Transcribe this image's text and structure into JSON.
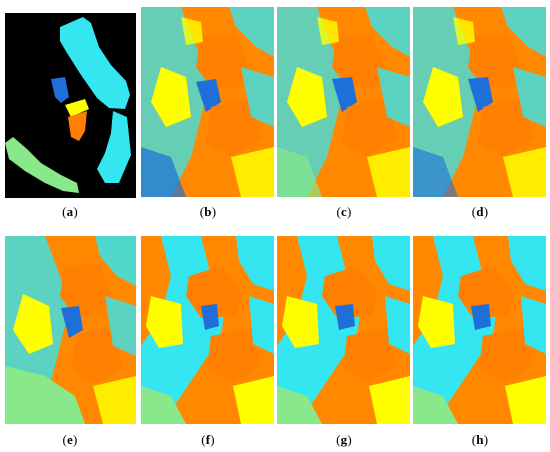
{
  "panels": [
    {
      "id": "a",
      "label": "a",
      "type": "ground-truth"
    },
    {
      "id": "b",
      "label": "b",
      "type": "classification-map"
    },
    {
      "id": "c",
      "label": "c",
      "type": "classification-map"
    },
    {
      "id": "d",
      "label": "d",
      "type": "classification-map"
    },
    {
      "id": "e",
      "label": "e",
      "type": "classification-map"
    },
    {
      "id": "f",
      "label": "f",
      "type": "classification-map"
    },
    {
      "id": "g",
      "label": "g",
      "type": "classification-map"
    },
    {
      "id": "h",
      "label": "h",
      "type": "classification-map"
    }
  ],
  "colors": {
    "background": "#000000",
    "orange": "#ff7f00",
    "cyan": "#33e6f0",
    "yellow": "#ffff00",
    "blue": "#1e6fd9",
    "green": "#88e88a"
  }
}
